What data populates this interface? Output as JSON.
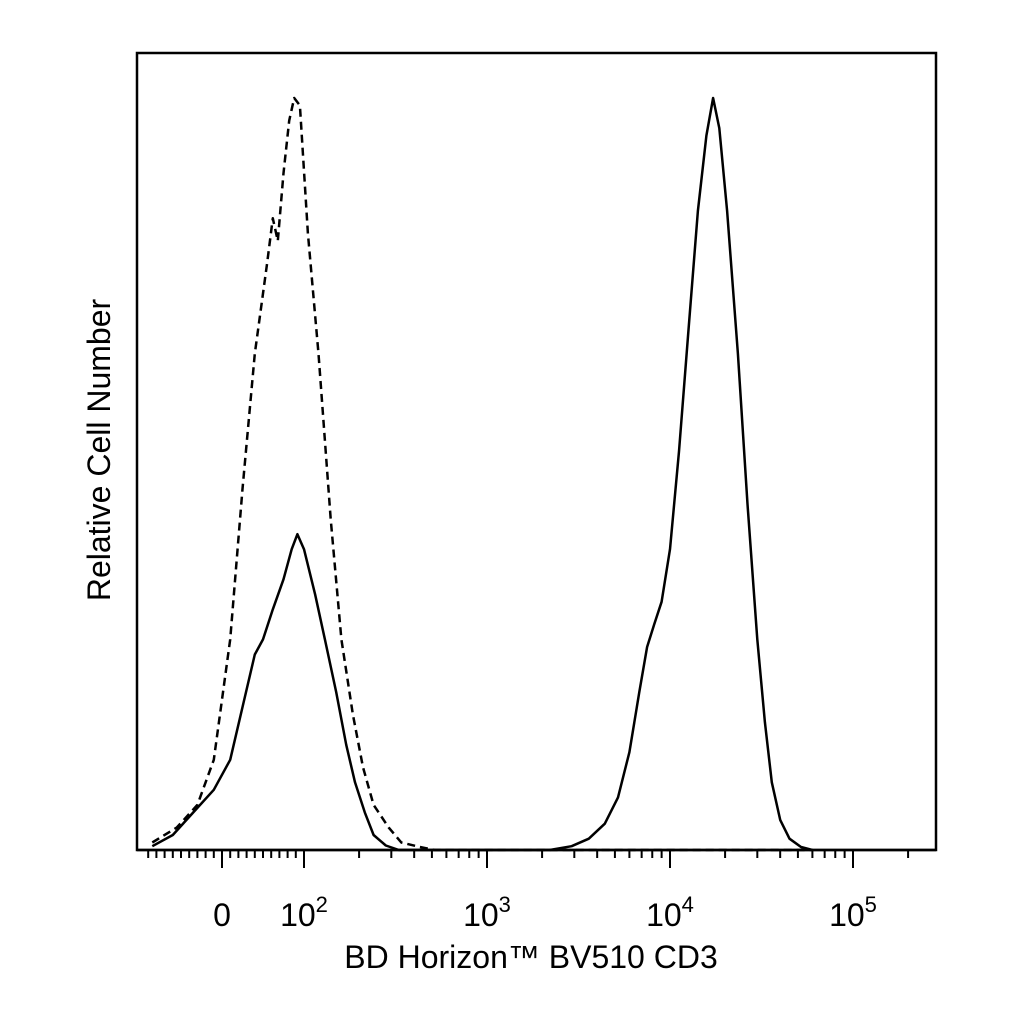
{
  "chart_data": {
    "type": "line",
    "title": "",
    "xlabel": "BD Horizon™ BV510 CD3",
    "ylabel": "Relative Cell Number",
    "x_scale": "biexponential",
    "x_tick_labels": [
      {
        "value": 0,
        "base": "0",
        "exp": ""
      },
      {
        "value": 100,
        "base": "10",
        "exp": "2"
      },
      {
        "value": 1000,
        "base": "10",
        "exp": "3"
      },
      {
        "value": 10000,
        "base": "10",
        "exp": "4"
      },
      {
        "value": 100000,
        "base": "10",
        "exp": "5"
      }
    ],
    "ylim": [
      0,
      100
    ],
    "grid": false,
    "legend": "none",
    "series": [
      {
        "style": "dashed",
        "points": [
          [
            -120,
            0
          ],
          [
            -85,
            1
          ],
          [
            -55,
            3
          ],
          [
            -30,
            6
          ],
          [
            -10,
            12
          ],
          [
            10,
            28
          ],
          [
            25,
            48
          ],
          [
            40,
            66
          ],
          [
            55,
            78
          ],
          [
            62,
            84
          ],
          [
            68,
            81
          ],
          [
            75,
            90
          ],
          [
            82,
            97
          ],
          [
            88,
            100
          ],
          [
            95,
            99
          ],
          [
            105,
            82
          ],
          [
            120,
            66
          ],
          [
            140,
            44
          ],
          [
            160,
            28
          ],
          [
            185,
            18
          ],
          [
            210,
            11
          ],
          [
            240,
            6
          ],
          [
            290,
            3
          ],
          [
            340,
            1
          ],
          [
            430,
            0.4
          ],
          [
            520,
            0
          ],
          [
            700,
            0
          ],
          [
            1000,
            0
          ],
          [
            5000,
            0
          ],
          [
            20000,
            0
          ],
          [
            60000,
            0
          ]
        ]
      },
      {
        "style": "solid",
        "points": [
          [
            -120,
            0
          ],
          [
            -85,
            0.5
          ],
          [
            -60,
            2
          ],
          [
            -35,
            5
          ],
          [
            -10,
            8
          ],
          [
            10,
            12
          ],
          [
            25,
            19
          ],
          [
            40,
            26
          ],
          [
            50,
            28
          ],
          [
            62,
            32
          ],
          [
            75,
            36
          ],
          [
            85,
            40
          ],
          [
            92,
            42
          ],
          [
            100,
            40
          ],
          [
            115,
            34
          ],
          [
            130,
            28
          ],
          [
            150,
            21
          ],
          [
            170,
            14
          ],
          [
            190,
            9
          ],
          [
            215,
            5
          ],
          [
            240,
            2
          ],
          [
            280,
            0.6
          ],
          [
            330,
            0
          ],
          [
            700,
            0
          ],
          [
            2200,
            0
          ],
          [
            2900,
            0.5
          ],
          [
            3600,
            1.5
          ],
          [
            4400,
            3.5
          ],
          [
            5200,
            7
          ],
          [
            6000,
            13
          ],
          [
            6800,
            21
          ],
          [
            7500,
            27
          ],
          [
            8200,
            30
          ],
          [
            9000,
            33
          ],
          [
            10000,
            40
          ],
          [
            11200,
            53
          ],
          [
            12600,
            69
          ],
          [
            14200,
            85
          ],
          [
            15800,
            95
          ],
          [
            17200,
            100
          ],
          [
            18600,
            96
          ],
          [
            20500,
            85
          ],
          [
            23500,
            66
          ],
          [
            26500,
            46
          ],
          [
            30000,
            28
          ],
          [
            33000,
            17
          ],
          [
            36000,
            9
          ],
          [
            40000,
            4
          ],
          [
            45000,
            1.5
          ],
          [
            52000,
            0.4
          ],
          [
            60000,
            0
          ]
        ]
      }
    ]
  }
}
